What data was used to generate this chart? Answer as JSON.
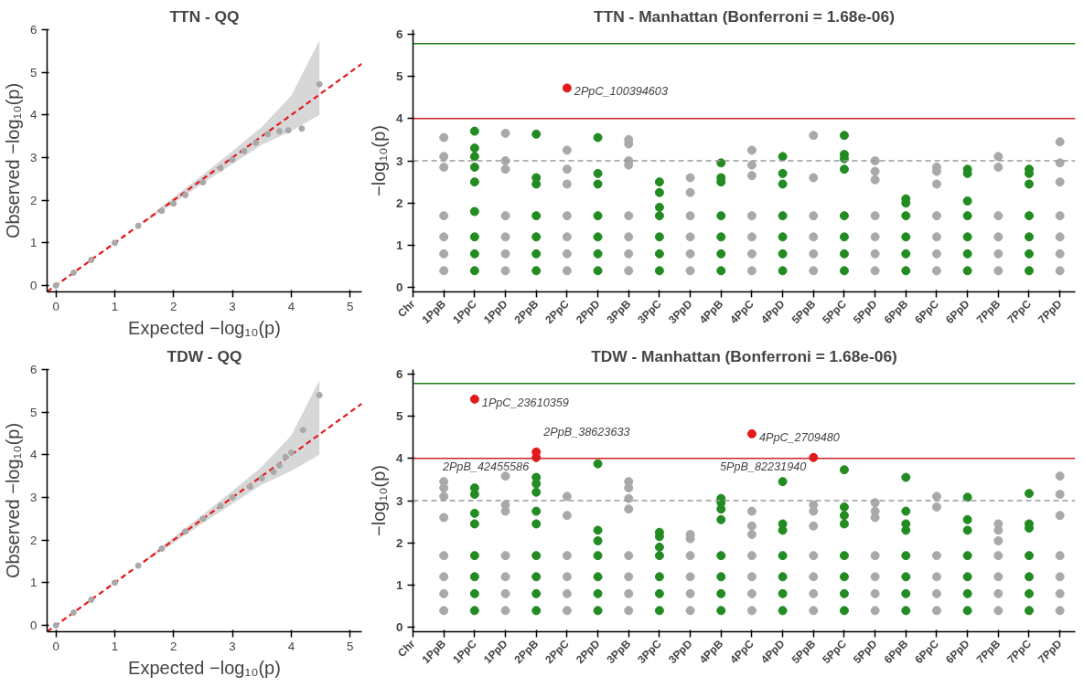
{
  "chart_data": [
    {
      "type": "scatter",
      "title": "TTN - QQ",
      "xlabel": "Expected −log₁₀(p)",
      "ylabel": "Observed −log₁₀(p)",
      "xlim": [
        -0.15,
        5.2
      ],
      "ylim": [
        -0.15,
        6
      ],
      "xticks": [
        0,
        1,
        2,
        3,
        4,
        5
      ],
      "yticks": [
        0,
        1,
        2,
        3,
        4,
        5,
        6
      ],
      "series": [
        {
          "type": "line",
          "color": "#e41a1c",
          "line_style": "dashed",
          "x": [
            -0.15,
            1.5,
            2,
            2.5,
            3,
            3.5,
            4,
            4.48,
            5.2
          ],
          "values": [
            -0.15,
            1.5,
            2,
            2.5,
            3,
            3.5,
            4,
            4.48,
            5.2
          ],
          "lower": [
            null,
            1.48,
            1.93,
            2.4,
            2.85,
            3.3,
            3.62,
            4.0,
            null
          ],
          "upper": [
            null,
            1.52,
            2.07,
            2.6,
            3.15,
            3.72,
            4.45,
            5.75,
            null
          ]
        },
        {
          "type": "scatter",
          "marker": "circle",
          "color": "#a9a9a9",
          "x": [
            0,
            0.3,
            0.6,
            1,
            1.4,
            1.8,
            2.0,
            2.2,
            2.5,
            2.8,
            3.0,
            3.2,
            3.4,
            3.6,
            3.8,
            3.95,
            4.18,
            4.48
          ],
          "values": [
            0,
            0.3,
            0.6,
            1,
            1.4,
            1.75,
            1.92,
            2.12,
            2.42,
            2.75,
            2.95,
            3.15,
            3.35,
            3.55,
            3.62,
            3.64,
            3.68,
            4.72
          ]
        }
      ]
    },
    {
      "type": "scatter",
      "title": "TTN - Manhattan (Bonferroni = 1.68e-06)",
      "xlabel": "Chr",
      "ylabel": "−log₁₀(p)",
      "ylim": [
        -0.1,
        6.1
      ],
      "yticks": [
        0,
        1,
        2,
        3,
        4,
        5,
        6
      ],
      "marker": "circle",
      "categories": [
        "1PpB",
        "1PpC",
        "1PpD",
        "2PpB",
        "2PpC",
        "2PpD",
        "3PpB",
        "3PpC",
        "3PpD",
        "4PpB",
        "4PpC",
        "4PpD",
        "5PpB",
        "5PpC",
        "5PpD",
        "6PpB",
        "6PpC",
        "6PpD",
        "7PpB",
        "7PpC",
        "7PpD"
      ],
      "ref_lines": [
        {
          "axis": "y",
          "value": 5.77,
          "color": "#1a7a1a"
        },
        {
          "axis": "y",
          "value": 4,
          "color": "#cc2222"
        },
        {
          "axis": "y",
          "value": 3,
          "color": "#999999",
          "line_style": "dashed"
        }
      ],
      "annotations": [
        {
          "text": "2PpC_100394603",
          "x": "2PpC",
          "y": 4.72
        }
      ],
      "series": [
        {
          "color": "#a9a9a9",
          "x": [
            "1PpB",
            "1PpB",
            "1PpB",
            "1PpB",
            "1PpB",
            "1PpB",
            "1PpB"
          ],
          "values": [
            3.55,
            3.1,
            2.85,
            1.7,
            1.2,
            0.8,
            0.4
          ]
        },
        {
          "color": "#228b22",
          "x": [
            "1PpC",
            "1PpC",
            "1PpC",
            "1PpC",
            "1PpC",
            "1PpC",
            "1PpC",
            "1PpC",
            "1PpC"
          ],
          "values": [
            3.7,
            3.3,
            3.1,
            2.85,
            2.5,
            1.8,
            1.2,
            0.8,
            0.4
          ]
        },
        {
          "color": "#a9a9a9",
          "x": [
            "1PpD",
            "1PpD",
            "1PpD",
            "1PpD",
            "1PpD",
            "1PpD",
            "1PpD"
          ],
          "values": [
            3.65,
            3.0,
            2.8,
            1.7,
            1.2,
            0.8,
            0.4
          ]
        },
        {
          "color": "#228b22",
          "x": [
            "2PpB",
            "2PpB",
            "2PpB",
            "2PpB",
            "2PpB",
            "2PpB",
            "2PpB"
          ],
          "values": [
            3.63,
            2.6,
            2.45,
            1.7,
            1.2,
            0.8,
            0.4
          ]
        },
        {
          "color": "#a9a9a9",
          "x": [
            "2PpC",
            "2PpC",
            "2PpC",
            "2PpC",
            "2PpC",
            "2PpC",
            "2PpC"
          ],
          "values": [
            3.25,
            2.8,
            2.45,
            1.7,
            1.2,
            0.8,
            0.4
          ]
        },
        {
          "color": "#228b22",
          "x": [
            "2PpD",
            "2PpD",
            "2PpD",
            "2PpD",
            "2PpD",
            "2PpD",
            "2PpD"
          ],
          "values": [
            3.55,
            2.7,
            2.45,
            1.7,
            1.2,
            0.8,
            0.4
          ]
        },
        {
          "color": "#a9a9a9",
          "x": [
            "3PpB",
            "3PpB",
            "3PpB",
            "3PpB",
            "3PpB",
            "3PpB",
            "3PpB",
            "3PpB"
          ],
          "values": [
            3.5,
            3.4,
            3.0,
            2.9,
            1.7,
            1.2,
            0.8,
            0.4
          ]
        },
        {
          "color": "#228b22",
          "x": [
            "3PpC",
            "3PpC",
            "3PpC",
            "3PpC",
            "3PpC",
            "3PpC",
            "3PpC"
          ],
          "values": [
            2.5,
            2.25,
            1.9,
            1.7,
            1.2,
            0.8,
            0.4
          ]
        },
        {
          "color": "#a9a9a9",
          "x": [
            "3PpD",
            "3PpD",
            "3PpD",
            "3PpD",
            "3PpD",
            "3PpD"
          ],
          "values": [
            2.6,
            2.25,
            1.7,
            1.2,
            0.8,
            0.4
          ]
        },
        {
          "color": "#228b22",
          "x": [
            "4PpB",
            "4PpB",
            "4PpB",
            "4PpB",
            "4PpB",
            "4PpB",
            "4PpB"
          ],
          "values": [
            2.95,
            2.6,
            2.5,
            1.7,
            1.2,
            0.8,
            0.4
          ]
        },
        {
          "color": "#a9a9a9",
          "x": [
            "4PpC",
            "4PpC",
            "4PpC",
            "4PpC",
            "4PpC",
            "4PpC",
            "4PpC"
          ],
          "values": [
            3.25,
            2.9,
            2.65,
            1.7,
            1.2,
            0.8,
            0.4
          ]
        },
        {
          "color": "#228b22",
          "x": [
            "4PpD",
            "4PpD",
            "4PpD",
            "4PpD",
            "4PpD",
            "4PpD",
            "4PpD"
          ],
          "values": [
            3.1,
            2.7,
            2.45,
            1.7,
            1.2,
            0.8,
            0.4
          ]
        },
        {
          "color": "#a9a9a9",
          "x": [
            "5PpB",
            "5PpB",
            "5PpB",
            "5PpB",
            "5PpB",
            "5PpB"
          ],
          "values": [
            3.6,
            2.6,
            1.7,
            1.2,
            0.8,
            0.4
          ]
        },
        {
          "color": "#228b22",
          "x": [
            "5PpC",
            "5PpC",
            "5PpC",
            "5PpC",
            "5PpC",
            "5PpC",
            "5PpC",
            "5PpC"
          ],
          "values": [
            3.6,
            3.15,
            3.05,
            2.8,
            1.7,
            1.2,
            0.8,
            0.4
          ]
        },
        {
          "color": "#a9a9a9",
          "x": [
            "5PpD",
            "5PpD",
            "5PpD",
            "5PpD",
            "5PpD",
            "5PpD",
            "5PpD"
          ],
          "values": [
            3.0,
            2.75,
            2.55,
            1.7,
            1.2,
            0.8,
            0.4
          ]
        },
        {
          "color": "#228b22",
          "x": [
            "6PpB",
            "6PpB",
            "6PpB",
            "6PpB",
            "6PpB",
            "6PpB"
          ],
          "values": [
            2.1,
            2.0,
            1.7,
            1.2,
            0.8,
            0.4
          ]
        },
        {
          "color": "#a9a9a9",
          "x": [
            "6PpC",
            "6PpC",
            "6PpC",
            "6PpC",
            "6PpC",
            "6PpC",
            "6PpC"
          ],
          "values": [
            2.85,
            2.75,
            2.45,
            1.7,
            1.2,
            0.8,
            0.4
          ]
        },
        {
          "color": "#228b22",
          "x": [
            "6PpD",
            "6PpD",
            "6PpD",
            "6PpD",
            "6PpD",
            "6PpD",
            "6PpD"
          ],
          "values": [
            2.8,
            2.7,
            2.05,
            1.7,
            1.2,
            0.8,
            0.4
          ]
        },
        {
          "color": "#a9a9a9",
          "x": [
            "7PpB",
            "7PpB",
            "7PpB",
            "7PpB",
            "7PpB",
            "7PpB"
          ],
          "values": [
            3.1,
            2.85,
            1.7,
            1.2,
            0.8,
            0.4
          ]
        },
        {
          "color": "#228b22",
          "x": [
            "7PpC",
            "7PpC",
            "7PpC",
            "7PpC",
            "7PpC",
            "7PpC",
            "7PpC"
          ],
          "values": [
            2.8,
            2.7,
            2.45,
            1.7,
            1.2,
            0.8,
            0.4
          ]
        },
        {
          "color": "#a9a9a9",
          "x": [
            "7PpD",
            "7PpD",
            "7PpD",
            "7PpD",
            "7PpD",
            "7PpD",
            "7PpD"
          ],
          "values": [
            3.45,
            2.95,
            2.5,
            1.7,
            1.2,
            0.8,
            0.4
          ]
        },
        {
          "color": "#e41a1c",
          "x": [
            "2PpC"
          ],
          "values": [
            4.72
          ]
        }
      ]
    },
    {
      "type": "scatter",
      "title": "TDW - QQ",
      "xlabel": "Expected −log₁₀(p)",
      "ylabel": "Observed −log₁₀(p)",
      "xlim": [
        -0.15,
        5.2
      ],
      "ylim": [
        -0.15,
        6
      ],
      "xticks": [
        0,
        1,
        2,
        3,
        4,
        5
      ],
      "yticks": [
        0,
        1,
        2,
        3,
        4,
        5,
        6
      ],
      "series": [
        {
          "type": "line",
          "color": "#e41a1c",
          "line_style": "dashed",
          "x": [
            -0.15,
            1.5,
            2,
            2.5,
            3,
            3.5,
            4,
            4.48,
            5.2
          ],
          "values": [
            -0.15,
            1.5,
            2,
            2.5,
            3,
            3.5,
            4,
            4.48,
            5.2
          ],
          "lower": [
            null,
            1.48,
            1.93,
            2.4,
            2.85,
            3.3,
            3.62,
            4.0,
            null
          ],
          "upper": [
            null,
            1.52,
            2.07,
            2.6,
            3.15,
            3.72,
            4.45,
            5.75,
            null
          ]
        },
        {
          "type": "scatter",
          "marker": "circle",
          "color": "#a9a9a9",
          "x": [
            0,
            0.3,
            0.6,
            1,
            1.4,
            1.8,
            2.2,
            2.5,
            2.8,
            3.0,
            3.3,
            3.5,
            3.7,
            3.8,
            3.9,
            4.0,
            4.2,
            4.48
          ],
          "values": [
            0,
            0.3,
            0.6,
            1,
            1.4,
            1.8,
            2.2,
            2.5,
            2.8,
            3.0,
            3.25,
            3.45,
            3.6,
            3.75,
            3.95,
            4.05,
            4.58,
            5.4
          ]
        }
      ]
    },
    {
      "type": "scatter",
      "title": "TDW - Manhattan (Bonferroni = 1.68e-06)",
      "xlabel": "Chr",
      "ylabel": "−log₁₀(p)",
      "ylim": [
        -0.1,
        6.1
      ],
      "yticks": [
        0,
        1,
        2,
        3,
        4,
        5,
        6
      ],
      "marker": "circle",
      "categories": [
        "1PpB",
        "1PpC",
        "1PpD",
        "2PpB",
        "2PpC",
        "2PpD",
        "3PpB",
        "3PpC",
        "3PpD",
        "4PpB",
        "4PpC",
        "4PpD",
        "5PpB",
        "5PpC",
        "5PpD",
        "6PpB",
        "6PpC",
        "6PpD",
        "7PpB",
        "7PpC",
        "7PpD"
      ],
      "ref_lines": [
        {
          "axis": "y",
          "value": 5.77,
          "color": "#1a7a1a"
        },
        {
          "axis": "y",
          "value": 4,
          "color": "#cc2222"
        },
        {
          "axis": "y",
          "value": 3,
          "color": "#999999",
          "line_style": "dashed"
        }
      ],
      "annotations": [
        {
          "text": "1PpC_23610359",
          "x": "1PpC",
          "y": 5.4
        },
        {
          "text": "2PpB_42455586",
          "x": "2PpB",
          "y": 4.02
        },
        {
          "text": "2PpB_38623633",
          "x": "2PpB",
          "y": 4.15
        },
        {
          "text": "4PpC_2709480",
          "x": "4PpC",
          "y": 4.58
        },
        {
          "text": "5PpB_82231940",
          "x": "5PpB",
          "y": 4.02
        }
      ],
      "series": [
        {
          "color": "#a9a9a9",
          "x": [
            "1PpB",
            "1PpB",
            "1PpB",
            "1PpB",
            "1PpB",
            "1PpB",
            "1PpB",
            "1PpB"
          ],
          "values": [
            3.45,
            3.3,
            3.1,
            2.6,
            1.7,
            1.2,
            0.8,
            0.4
          ]
        },
        {
          "color": "#228b22",
          "x": [
            "1PpC",
            "1PpC",
            "1PpC",
            "1PpC",
            "1PpC",
            "1PpC",
            "1PpC",
            "1PpC"
          ],
          "values": [
            3.3,
            3.15,
            2.7,
            2.45,
            1.7,
            1.2,
            0.8,
            0.4
          ]
        },
        {
          "color": "#a9a9a9",
          "x": [
            "1PpD",
            "1PpD",
            "1PpD",
            "1PpD",
            "1PpD",
            "1PpD",
            "1PpD"
          ],
          "values": [
            3.58,
            2.9,
            2.75,
            1.7,
            1.2,
            0.8,
            0.4
          ]
        },
        {
          "color": "#228b22",
          "x": [
            "2PpB",
            "2PpB",
            "2PpB",
            "2PpB",
            "2PpB",
            "2PpB",
            "2PpB",
            "2PpB",
            "2PpB"
          ],
          "values": [
            3.55,
            3.4,
            3.2,
            2.75,
            2.45,
            1.7,
            1.2,
            0.8,
            0.4
          ]
        },
        {
          "color": "#a9a9a9",
          "x": [
            "2PpC",
            "2PpC",
            "2PpC",
            "2PpC",
            "2PpC",
            "2PpC"
          ],
          "values": [
            3.1,
            2.65,
            1.7,
            1.2,
            0.8,
            0.4
          ]
        },
        {
          "color": "#228b22",
          "x": [
            "2PpD",
            "2PpD",
            "2PpD",
            "2PpD",
            "2PpD",
            "2PpD",
            "2PpD"
          ],
          "values": [
            3.87,
            2.3,
            2.05,
            1.7,
            1.2,
            0.8,
            0.4
          ]
        },
        {
          "color": "#a9a9a9",
          "x": [
            "3PpB",
            "3PpB",
            "3PpB",
            "3PpB",
            "3PpB",
            "3PpB",
            "3PpB",
            "3PpB"
          ],
          "values": [
            3.45,
            3.3,
            3.05,
            2.8,
            1.7,
            1.2,
            0.8,
            0.4
          ]
        },
        {
          "color": "#228b22",
          "x": [
            "3PpC",
            "3PpC",
            "3PpC",
            "3PpC",
            "3PpC",
            "3PpC",
            "3PpC"
          ],
          "values": [
            2.25,
            2.15,
            1.9,
            1.7,
            1.2,
            0.8,
            0.4
          ]
        },
        {
          "color": "#a9a9a9",
          "x": [
            "3PpD",
            "3PpD",
            "3PpD",
            "3PpD",
            "3PpD",
            "3PpD"
          ],
          "values": [
            2.2,
            2.1,
            1.7,
            1.2,
            0.8,
            0.4
          ]
        },
        {
          "color": "#228b22",
          "x": [
            "4PpB",
            "4PpB",
            "4PpB",
            "4PpB",
            "4PpB",
            "4PpB",
            "4PpB",
            "4PpB"
          ],
          "values": [
            3.05,
            2.95,
            2.8,
            2.55,
            1.7,
            1.2,
            0.8,
            0.4
          ]
        },
        {
          "color": "#a9a9a9",
          "x": [
            "4PpC",
            "4PpC",
            "4PpC",
            "4PpC",
            "4PpC",
            "4PpC",
            "4PpC"
          ],
          "values": [
            2.75,
            2.4,
            2.2,
            1.7,
            1.2,
            0.8,
            0.4
          ]
        },
        {
          "color": "#228b22",
          "x": [
            "4PpD",
            "4PpD",
            "4PpD",
            "4PpD",
            "4PpD",
            "4PpD",
            "4PpD"
          ],
          "values": [
            3.45,
            2.45,
            2.3,
            1.7,
            1.2,
            0.8,
            0.4
          ]
        },
        {
          "color": "#a9a9a9",
          "x": [
            "5PpB",
            "5PpB",
            "5PpB",
            "5PpB",
            "5PpB",
            "5PpB",
            "5PpB"
          ],
          "values": [
            2.9,
            2.75,
            2.4,
            1.7,
            1.2,
            0.8,
            0.4
          ]
        },
        {
          "color": "#228b22",
          "x": [
            "5PpC",
            "5PpC",
            "5PpC",
            "5PpC",
            "5PpC",
            "5PpC",
            "5PpC",
            "5PpC"
          ],
          "values": [
            3.73,
            2.85,
            2.65,
            2.45,
            1.7,
            1.2,
            0.8,
            0.4
          ]
        },
        {
          "color": "#a9a9a9",
          "x": [
            "5PpD",
            "5PpD",
            "5PpD",
            "5PpD",
            "5PpD",
            "5PpD",
            "5PpD"
          ],
          "values": [
            2.95,
            2.75,
            2.6,
            1.7,
            1.2,
            0.8,
            0.4
          ]
        },
        {
          "color": "#228b22",
          "x": [
            "6PpB",
            "6PpB",
            "6PpB",
            "6PpB",
            "6PpB",
            "6PpB",
            "6PpB",
            "6PpB"
          ],
          "values": [
            3.55,
            2.75,
            2.45,
            2.3,
            1.7,
            1.2,
            0.8,
            0.4
          ]
        },
        {
          "color": "#a9a9a9",
          "x": [
            "6PpC",
            "6PpC",
            "6PpC",
            "6PpC",
            "6PpC",
            "6PpC"
          ],
          "values": [
            3.1,
            2.85,
            1.7,
            1.2,
            0.8,
            0.4
          ]
        },
        {
          "color": "#228b22",
          "x": [
            "6PpD",
            "6PpD",
            "6PpD",
            "6PpD",
            "6PpD",
            "6PpD",
            "6PpD"
          ],
          "values": [
            3.08,
            2.55,
            2.3,
            1.7,
            1.2,
            0.8,
            0.4
          ]
        },
        {
          "color": "#a9a9a9",
          "x": [
            "7PpB",
            "7PpB",
            "7PpB",
            "7PpB",
            "7PpB",
            "7PpB",
            "7PpB"
          ],
          "values": [
            2.45,
            2.3,
            2.05,
            1.7,
            1.2,
            0.8,
            0.4
          ]
        },
        {
          "color": "#228b22",
          "x": [
            "7PpC",
            "7PpC",
            "7PpC",
            "7PpC",
            "7PpC",
            "7PpC",
            "7PpC"
          ],
          "values": [
            3.17,
            2.45,
            2.35,
            1.7,
            1.2,
            0.8,
            0.4
          ]
        },
        {
          "color": "#a9a9a9",
          "x": [
            "7PpD",
            "7PpD",
            "7PpD",
            "7PpD",
            "7PpD",
            "7PpD",
            "7PpD"
          ],
          "values": [
            3.58,
            3.15,
            2.65,
            1.7,
            1.2,
            0.8,
            0.4
          ]
        },
        {
          "color": "#e41a1c",
          "x": [
            "1PpC",
            "2PpB",
            "2PpB",
            "4PpC",
            "5PpB"
          ],
          "values": [
            5.4,
            4.15,
            4.02,
            4.58,
            4.02
          ]
        }
      ]
    }
  ]
}
